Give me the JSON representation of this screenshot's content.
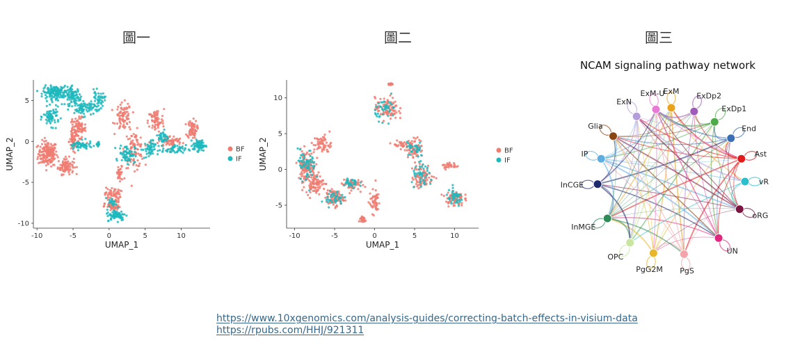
{
  "figures": {
    "fig1_title": "圖一",
    "fig2_title": "圖二",
    "fig3_title": "圖三"
  },
  "links": [
    "https://www.10xgenomics.com/analysis-guides/correcting-batch-effects-in-visium-data",
    "https://rpubs.com/HHJ/921311"
  ],
  "colors": {
    "BF": "#ef7d72",
    "IF": "#1fb8bd"
  },
  "chart_data": [
    {
      "type": "scatter",
      "xlabel": "UMAP_1",
      "ylabel": "UMAP_2",
      "xticks": [
        -10,
        -5,
        0,
        5,
        10
      ],
      "yticks": [
        -10,
        -5,
        0,
        5
      ],
      "xlim": [
        -10.5,
        14
      ],
      "ylim": [
        -10.6,
        7.5
      ],
      "legend": {
        "placement": "right",
        "entries": [
          "BF",
          "IF"
        ]
      },
      "series": [
        {
          "name": "BF",
          "clusters": [
            {
              "x": -8.5,
              "y": -1.5,
              "sx": 1.2,
              "sy": 1.4,
              "n": 170
            },
            {
              "x": -6.0,
              "y": -3.0,
              "sx": 1.0,
              "sy": 0.9,
              "n": 90
            },
            {
              "x": -4.3,
              "y": 1.5,
              "sx": 1.0,
              "sy": 1.2,
              "n": 90
            },
            {
              "x": -5.0,
              "y": 0.0,
              "sx": 0.5,
              "sy": 1.5,
              "n": 50
            },
            {
              "x": 2.0,
              "y": 3.0,
              "sx": 1.0,
              "sy": 1.5,
              "n": 80
            },
            {
              "x": 3.5,
              "y": -1.0,
              "sx": 1.2,
              "sy": 2.0,
              "n": 90
            },
            {
              "x": 6.5,
              "y": 2.5,
              "sx": 1.0,
              "sy": 1.3,
              "n": 70
            },
            {
              "x": 8.5,
              "y": 0.0,
              "sx": 1.5,
              "sy": 0.6,
              "n": 60
            },
            {
              "x": 11.5,
              "y": 1.5,
              "sx": 0.6,
              "sy": 1.0,
              "n": 70
            },
            {
              "x": 0.5,
              "y": -6.5,
              "sx": 1.0,
              "sy": 0.8,
              "n": 60
            },
            {
              "x": 0.5,
              "y": -8.0,
              "sx": 1.0,
              "sy": 0.5,
              "n": 50
            },
            {
              "x": 1.5,
              "y": -4.0,
              "sx": 0.5,
              "sy": 1.0,
              "n": 30
            }
          ]
        },
        {
          "name": "IF",
          "clusters": [
            {
              "x": -7.5,
              "y": 6.0,
              "sx": 1.5,
              "sy": 0.7,
              "n": 150
            },
            {
              "x": -5.0,
              "y": 5.5,
              "sx": 1.0,
              "sy": 1.0,
              "n": 90
            },
            {
              "x": -3.5,
              "y": 4.0,
              "sx": 1.2,
              "sy": 0.8,
              "n": 70
            },
            {
              "x": -8.0,
              "y": 3.0,
              "sx": 1.0,
              "sy": 1.0,
              "n": 70
            },
            {
              "x": -4.0,
              "y": -0.5,
              "sx": 1.5,
              "sy": 0.5,
              "n": 60
            },
            {
              "x": -1.5,
              "y": 5.0,
              "sx": 0.8,
              "sy": 1.0,
              "n": 50
            },
            {
              "x": -1.5,
              "y": -0.3,
              "sx": 0.3,
              "sy": 0.3,
              "n": 15
            },
            {
              "x": 2.5,
              "y": -1.5,
              "sx": 1.0,
              "sy": 1.0,
              "n": 70
            },
            {
              "x": 5.5,
              "y": -1.0,
              "sx": 0.8,
              "sy": 1.0,
              "n": 50
            },
            {
              "x": 9.0,
              "y": -1.0,
              "sx": 1.5,
              "sy": 0.5,
              "n": 50
            },
            {
              "x": 12.5,
              "y": -0.5,
              "sx": 0.8,
              "sy": 0.6,
              "n": 80
            },
            {
              "x": 7.5,
              "y": 0.5,
              "sx": 0.6,
              "sy": 0.8,
              "n": 40
            },
            {
              "x": 1.0,
              "y": -9.0,
              "sx": 1.2,
              "sy": 0.6,
              "n": 80
            },
            {
              "x": 0.5,
              "y": -7.5,
              "sx": 0.5,
              "sy": 0.5,
              "n": 20
            }
          ]
        }
      ]
    },
    {
      "type": "scatter",
      "xlabel": "UMAP_1",
      "ylabel": "UMAP_2",
      "xticks": [
        -10,
        -5,
        0,
        5,
        10
      ],
      "yticks": [
        -5,
        0,
        5,
        10
      ],
      "xlim": [
        -11,
        13
      ],
      "ylim": [
        -8.2,
        12.5
      ],
      "legend": {
        "placement": "right",
        "entries": [
          "BF",
          "IF"
        ]
      },
      "series": [
        {
          "name": "BF",
          "clusters": [
            {
              "x": -8.5,
              "y": 0.5,
              "sx": 1.0,
              "sy": 2.0,
              "n": 120
            },
            {
              "x": -7.5,
              "y": -2.0,
              "sx": 1.0,
              "sy": 1.2,
              "n": 80
            },
            {
              "x": -6.5,
              "y": 3.5,
              "sx": 1.0,
              "sy": 1.2,
              "n": 60
            },
            {
              "x": -5.0,
              "y": -4.0,
              "sx": 1.0,
              "sy": 1.0,
              "n": 80
            },
            {
              "x": -3.0,
              "y": -2.0,
              "sx": 1.0,
              "sy": 0.8,
              "n": 60
            },
            {
              "x": -1.5,
              "y": -7.0,
              "sx": 0.4,
              "sy": 0.5,
              "n": 30
            },
            {
              "x": 0.0,
              "y": -4.5,
              "sx": 0.6,
              "sy": 1.5,
              "n": 50
            },
            {
              "x": 1.5,
              "y": 8.5,
              "sx": 1.3,
              "sy": 1.4,
              "n": 90
            },
            {
              "x": 2.0,
              "y": 12.0,
              "sx": 0.3,
              "sy": 0.3,
              "n": 15
            },
            {
              "x": 5.0,
              "y": 3.0,
              "sx": 1.0,
              "sy": 1.2,
              "n": 70
            },
            {
              "x": 6.0,
              "y": -1.0,
              "sx": 1.2,
              "sy": 1.5,
              "n": 80
            },
            {
              "x": 3.0,
              "y": 3.5,
              "sx": 0.8,
              "sy": 0.4,
              "n": 25
            },
            {
              "x": 10.0,
              "y": -4.0,
              "sx": 1.0,
              "sy": 1.0,
              "n": 80
            },
            {
              "x": 9.5,
              "y": 0.5,
              "sx": 1.0,
              "sy": 0.4,
              "n": 30
            }
          ]
        },
        {
          "name": "IF",
          "clusters": [
            {
              "x": -8.5,
              "y": 0.5,
              "sx": 1.0,
              "sy": 2.0,
              "n": 60
            },
            {
              "x": -5.0,
              "y": -4.0,
              "sx": 1.0,
              "sy": 1.0,
              "n": 40
            },
            {
              "x": 1.5,
              "y": 8.5,
              "sx": 1.3,
              "sy": 1.4,
              "n": 40
            },
            {
              "x": 6.0,
              "y": -1.0,
              "sx": 1.2,
              "sy": 1.5,
              "n": 40
            },
            {
              "x": 10.0,
              "y": -4.0,
              "sx": 1.0,
              "sy": 1.0,
              "n": 40
            },
            {
              "x": -3.0,
              "y": -2.0,
              "sx": 1.0,
              "sy": 0.8,
              "n": 30
            },
            {
              "x": 5.0,
              "y": 3.0,
              "sx": 1.0,
              "sy": 1.2,
              "n": 30
            }
          ]
        }
      ]
    },
    {
      "type": "network",
      "title": "NCAM signaling pathway network",
      "nodes": [
        {
          "label": "ExM",
          "color": "#e8a31b",
          "angle": 90
        },
        {
          "label": "ExDp2",
          "color": "#a05ab8",
          "angle": 72
        },
        {
          "label": "ExDp1",
          "color": "#4eab4a",
          "angle": 54
        },
        {
          "label": "End",
          "color": "#3a6fb5",
          "angle": 36
        },
        {
          "label": "Ast",
          "color": "#e31a1c",
          "angle": 18
        },
        {
          "label": "vRG",
          "color": "#2bbfcb",
          "angle": 0
        },
        {
          "label": "oRG",
          "color": "#7a1541",
          "angle": -22
        },
        {
          "label": "UN",
          "color": "#e0287e",
          "angle": -50
        },
        {
          "label": "PgS",
          "color": "#f4a3a8",
          "angle": -80
        },
        {
          "label": "PgG2M",
          "color": "#e8b62b",
          "angle": -104
        },
        {
          "label": "OPC",
          "color": "#c8e6a0",
          "angle": -124
        },
        {
          "label": "InMGE",
          "color": "#2e8b57",
          "angle": -150
        },
        {
          "label": "InCGE",
          "color": "#1f2a6e",
          "angle": -178
        },
        {
          "label": "IP",
          "color": "#5dade2",
          "angle": 162
        },
        {
          "label": "Glia",
          "color": "#8b4513",
          "angle": 142
        },
        {
          "label": "ExN",
          "color": "#b39ddb",
          "angle": 118
        },
        {
          "label": "ExM-U",
          "color": "#e87ad6",
          "angle": 102
        }
      ]
    }
  ]
}
